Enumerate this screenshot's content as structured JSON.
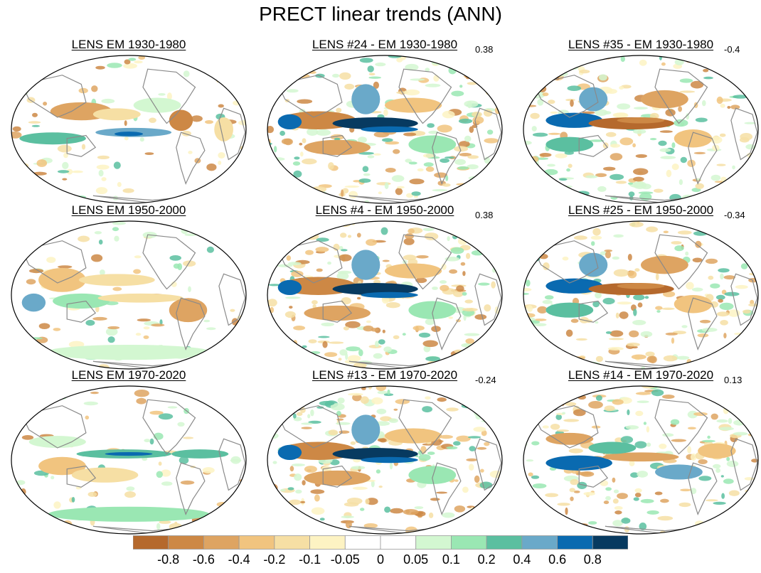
{
  "title": "PRECT linear trends (ANN)",
  "colors": {
    "coast": "#8a8a8a",
    "outline": "#000000",
    "palette": [
      "#b5692d",
      "#cd8845",
      "#dea462",
      "#f1c47f",
      "#f6dfa4",
      "#fdf3c3",
      "#ffffff",
      "#ffffff",
      "#d3f7d1",
      "#9ae7b3",
      "#5bbfa0",
      "#6aa9c9",
      "#0a6ab0",
      "#073a60"
    ]
  },
  "colorbar": {
    "labels": [
      "-0.8",
      "-0.6",
      "-0.4",
      "-0.2",
      "-0.1",
      "-0.05",
      "0",
      "0.05",
      "0.1",
      "0.2",
      "0.4",
      "0.6",
      "0.8"
    ]
  },
  "panels": [
    {
      "id": "em-1930",
      "title": "LENS EM 1930-1980",
      "corr": "",
      "pattern": "em1"
    },
    {
      "id": "m24",
      "title": "LENS #24 - EM 1930-1980",
      "corr": "0.38",
      "pattern": "strongWet"
    },
    {
      "id": "m35",
      "title": "LENS #35 - EM 1930-1980",
      "corr": "-0.4",
      "pattern": "strongDry"
    },
    {
      "id": "em-1950",
      "title": "LENS EM 1950-2000",
      "corr": "",
      "pattern": "em2"
    },
    {
      "id": "m4",
      "title": "LENS #4 - EM 1950-2000",
      "corr": "0.38",
      "pattern": "strongWet"
    },
    {
      "id": "m25",
      "title": "LENS #25 - EM 1950-2000",
      "corr": "-0.34",
      "pattern": "strongDry"
    },
    {
      "id": "em-1970",
      "title": "LENS EM 1970-2020",
      "corr": "",
      "pattern": "em3"
    },
    {
      "id": "m13",
      "title": "LENS #13 - EM 1970-2020",
      "corr": "-0.24",
      "pattern": "strongWet"
    },
    {
      "id": "m14",
      "title": "LENS #14 - EM 1970-2020",
      "corr": "0.13",
      "pattern": "mixed"
    }
  ]
}
